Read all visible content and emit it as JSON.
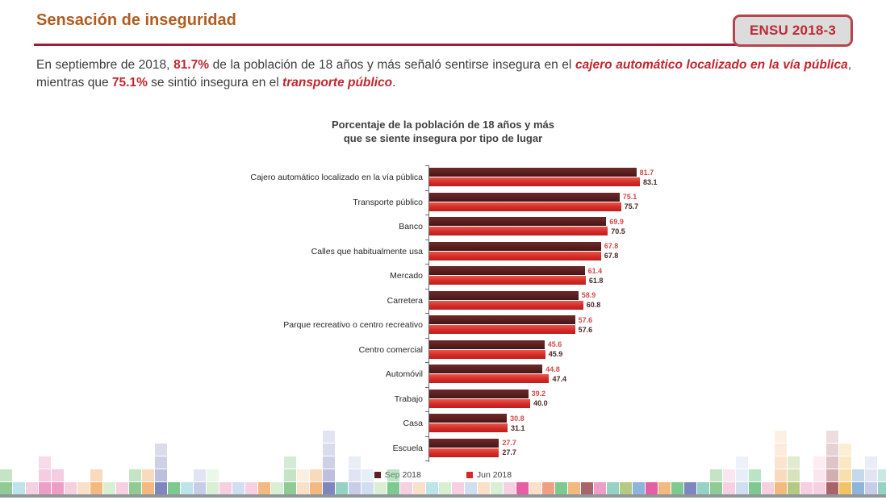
{
  "header": {
    "title": "Sensación de inseguridad",
    "badge": "ENSU 2018-3"
  },
  "intro": {
    "segments": [
      {
        "text": "En septiembre de 2018, "
      },
      {
        "text": "81.7%"
      },
      {
        "text": " de la población de 18 años y más señaló sentirse insegura en el "
      },
      {
        "text": "cajero automático localizado en la vía pública"
      },
      {
        "text": ", mientras que "
      },
      {
        "text": "75.1%"
      },
      {
        "text": " se sintió insegura en el "
      },
      {
        "text": "transporte público"
      },
      {
        "text": "."
      }
    ]
  },
  "chart_data": {
    "type": "bar",
    "orientation": "horizontal",
    "title_lines": [
      "Porcentaje de la población de 18 años y más",
      "que se siente insegura por tipo de lugar"
    ],
    "xlabel": "",
    "ylabel": "",
    "xlim": [
      0,
      100
    ],
    "grid": false,
    "legend_position": "bottom",
    "categories": [
      "Cajero automático localizado en la vía pública",
      "Transporte público",
      "Banco",
      "Calles que habitualmente usa",
      "Mercado",
      "Carretera",
      "Parque recreativo o centro recreativo",
      "Centro comercial",
      "Automóvil",
      "Trabajo",
      "Casa",
      "Escuela"
    ],
    "series": [
      {
        "name": "Sep 2018",
        "color": "#5a2021",
        "value_label_color": "#cf4b4a",
        "values": [
          81.7,
          75.1,
          69.9,
          67.8,
          61.4,
          58.9,
          57.6,
          45.6,
          44.8,
          39.2,
          30.8,
          27.7
        ]
      },
      {
        "name": "Jun 2018",
        "color": "#d42b28",
        "value_label_color": "#4c2626",
        "values": [
          83.1,
          75.7,
          70.5,
          67.8,
          61.8,
          60.8,
          57.6,
          45.9,
          47.4,
          40.0,
          31.1,
          27.7
        ]
      }
    ]
  },
  "colors": {
    "title": "#b05c22",
    "rule": "#a11d33",
    "badge_border": "#b5444c",
    "badge_bg": "#dcdcdc",
    "badge_text": "#be2a33",
    "highlight_red": "#c2262e",
    "body_text": "#3d3d3d",
    "footer_line": "#8f969a"
  },
  "decor": {
    "palette": [
      "#8fcb92",
      "#bde4ea",
      "#ec9ec6",
      "#f6d0e0",
      "#f3b97e",
      "#fae0c8",
      "#7e86bd",
      "#c7cce8",
      "#d9efd4",
      "#cfdef0",
      "#e35ea2",
      "#b4c983",
      "#a8646a",
      "#f1c364",
      "#8fb4da",
      "#96d2c4",
      "#ef9f86",
      "#7dc98f"
    ],
    "columns": [
      [
        0,
        2
      ],
      [
        1,
        1
      ],
      [
        3,
        1
      ],
      [
        2,
        3
      ],
      [
        2,
        2
      ],
      [
        3,
        1
      ],
      [
        5,
        1
      ],
      [
        4,
        2
      ],
      [
        8,
        1
      ],
      [
        3,
        1
      ],
      [
        0,
        2
      ],
      [
        4,
        2
      ],
      [
        6,
        4
      ],
      [
        17,
        1
      ],
      [
        1,
        1
      ],
      [
        7,
        2
      ],
      [
        8,
        2
      ],
      [
        3,
        1
      ],
      [
        9,
        1
      ],
      [
        3,
        1
      ],
      [
        4,
        1
      ],
      [
        8,
        1
      ],
      [
        0,
        3
      ],
      [
        5,
        2
      ],
      [
        4,
        2
      ],
      [
        6,
        5
      ],
      [
        15,
        1
      ],
      [
        7,
        3
      ],
      [
        9,
        2
      ],
      [
        8,
        1
      ],
      [
        17,
        2
      ],
      [
        3,
        1
      ],
      [
        5,
        1
      ],
      [
        1,
        1
      ],
      [
        8,
        1
      ],
      [
        3,
        1
      ],
      [
        9,
        1
      ],
      [
        5,
        1
      ],
      [
        8,
        1
      ],
      [
        3,
        1
      ],
      [
        10,
        1
      ],
      [
        5,
        1
      ],
      [
        16,
        1
      ],
      [
        17,
        1
      ],
      [
        4,
        1
      ],
      [
        12,
        1
      ],
      [
        2,
        1
      ],
      [
        15,
        1
      ],
      [
        11,
        1
      ],
      [
        14,
        1
      ],
      [
        10,
        1
      ],
      [
        4,
        1
      ],
      [
        17,
        1
      ],
      [
        6,
        1
      ],
      [
        15,
        1
      ],
      [
        0,
        2
      ],
      [
        3,
        2
      ],
      [
        9,
        3
      ],
      [
        17,
        2
      ],
      [
        3,
        1
      ],
      [
        4,
        5
      ],
      [
        11,
        3
      ],
      [
        3,
        1
      ],
      [
        3,
        3
      ],
      [
        12,
        5
      ],
      [
        13,
        4
      ],
      [
        14,
        2
      ],
      [
        7,
        3
      ],
      [
        15,
        2
      ],
      [
        13,
        5
      ]
    ]
  }
}
